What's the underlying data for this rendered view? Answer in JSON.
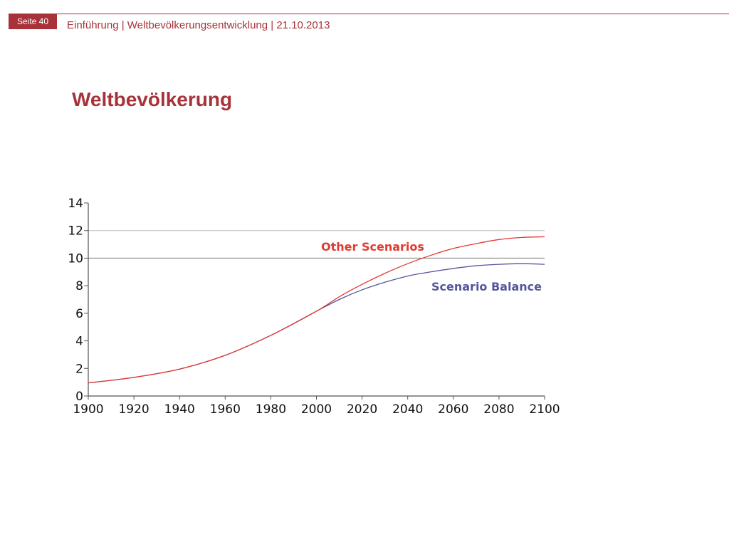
{
  "header": {
    "page_label": "Seite 40",
    "breadcrumb": "Einführung | Weltbevölkerungsentwicklung | 21.10.2013"
  },
  "title": "Weltbevölkerung",
  "colors": {
    "accent": "#a8323a",
    "other_scenarios": "#e03a32",
    "scenario_balance": "#55559c"
  },
  "chart_data": {
    "type": "line",
    "title": "",
    "xlabel": "",
    "ylabel": "",
    "xlim": [
      1900,
      2100
    ],
    "ylim": [
      0,
      14
    ],
    "x_ticks": [
      1900,
      1920,
      1940,
      1960,
      1980,
      2000,
      2020,
      2040,
      2060,
      2080,
      2100
    ],
    "y_ticks": [
      0,
      2,
      4,
      6,
      8,
      10,
      12,
      14
    ],
    "reference_lines": [
      10,
      12
    ],
    "grid": false,
    "series": [
      {
        "name": "Other Scenarios",
        "color": "#e03a32",
        "x": [
          1900,
          1920,
          1940,
          1960,
          1980,
          2000,
          2010,
          2020,
          2030,
          2040,
          2050,
          2060,
          2070,
          2080,
          2090,
          2100
        ],
        "values": [
          0.95,
          1.35,
          1.95,
          2.95,
          4.4,
          6.15,
          7.2,
          8.1,
          8.9,
          9.6,
          10.2,
          10.7,
          11.05,
          11.35,
          11.5,
          11.55
        ]
      },
      {
        "name": "Scenario Balance",
        "color": "#55559c",
        "x": [
          1900,
          1920,
          1940,
          1960,
          1980,
          2000,
          2010,
          2020,
          2030,
          2040,
          2050,
          2060,
          2070,
          2080,
          2090,
          2100
        ],
        "values": [
          0.95,
          1.35,
          1.95,
          2.95,
          4.4,
          6.15,
          7.0,
          7.7,
          8.25,
          8.7,
          9.0,
          9.25,
          9.45,
          9.55,
          9.6,
          9.55
        ]
      }
    ]
  }
}
